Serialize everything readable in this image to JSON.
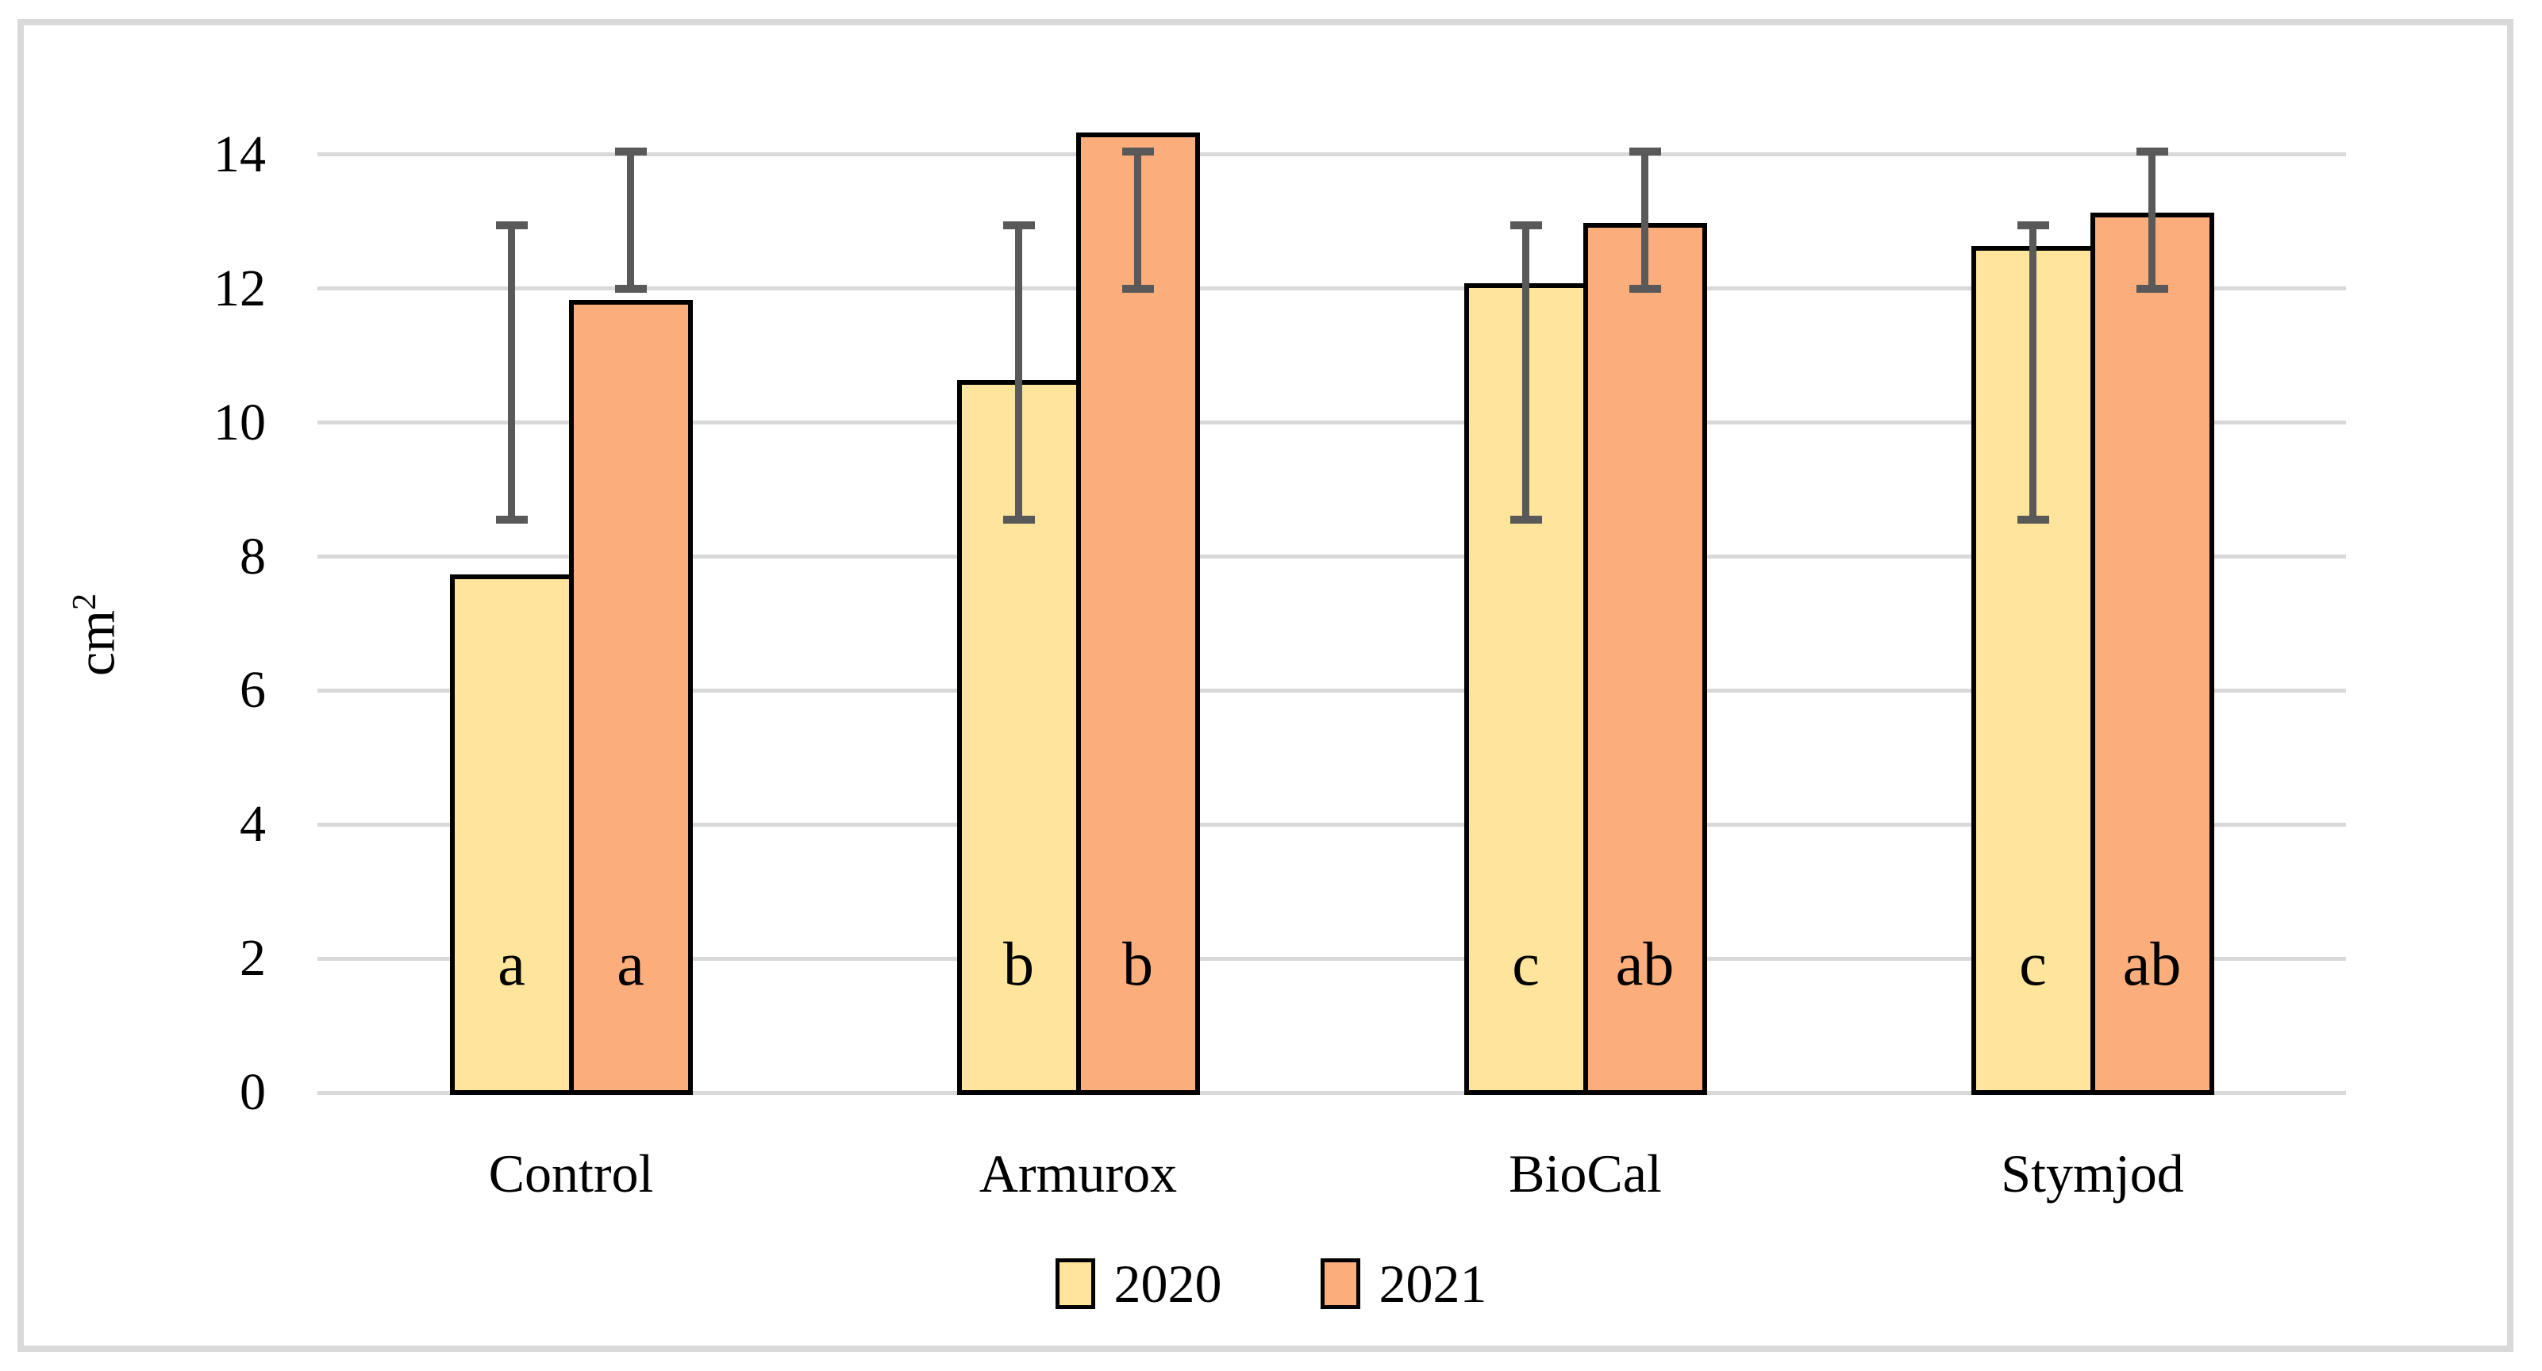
{
  "figure": {
    "background_color": "#FFFFFF",
    "border_color": "#D9D9D9"
  },
  "chart_data": {
    "type": "bar",
    "title": "",
    "xlabel": "",
    "ylabel": "cm²",
    "ylabel_parts": {
      "base": "cm",
      "sup": "2"
    },
    "ylim": [
      0,
      14
    ],
    "yticks": [
      0,
      2,
      4,
      6,
      8,
      10,
      12,
      14
    ],
    "grid": true,
    "gridline_color": "#D9D9D9",
    "bar_border_color": "#000000",
    "error_bar_color": "#595959",
    "legend_position": "bottom",
    "categories": [
      "Control",
      "Armurox",
      "BioCal",
      "Stymjod"
    ],
    "series": [
      {
        "name": "2020",
        "color": "#FFE59B",
        "values": [
          7.7,
          10.6,
          12.05,
          12.6
        ],
        "error_low": [
          8.55,
          8.55,
          8.55,
          8.55
        ],
        "error_high": [
          12.95,
          12.95,
          12.95,
          12.95
        ],
        "letters": [
          "a",
          "b",
          "c",
          "c"
        ]
      },
      {
        "name": "2021",
        "color": "#FBAD7C",
        "values": [
          11.8,
          14.3,
          12.95,
          13.1
        ],
        "error_low": [
          12.0,
          12.0,
          12.0,
          12.0
        ],
        "error_high": [
          14.05,
          14.05,
          14.05,
          14.05
        ],
        "letters": [
          "a",
          "b",
          "ab",
          "ab"
        ]
      }
    ]
  }
}
